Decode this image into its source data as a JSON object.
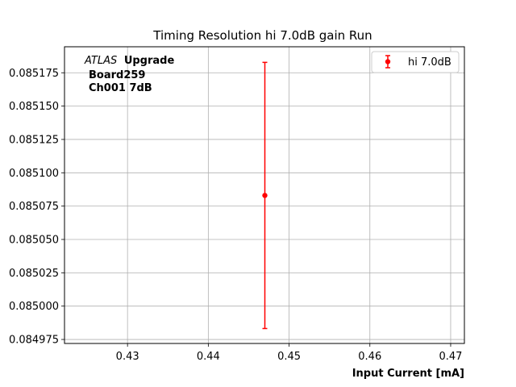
{
  "chart_data": {
    "type": "scatter",
    "title": "Timing Resolution hi 7.0dB gain Run",
    "xlabel": "Input Current [mA]",
    "ylabel": "",
    "xlim": [
      0.4222,
      0.4717
    ],
    "ylim": [
      0.084972,
      0.0851945
    ],
    "xticks": [
      "0.43",
      "0.44",
      "0.45",
      "0.46",
      "0.47"
    ],
    "xtick_values": [
      0.43,
      0.44,
      0.45,
      0.46,
      0.47
    ],
    "yticks": [
      "0.084975",
      "0.085000",
      "0.085025",
      "0.085050",
      "0.085075",
      "0.085100",
      "0.085125",
      "0.085150",
      "0.085175"
    ],
    "ytick_values": [
      0.084975,
      0.085,
      0.085025,
      0.08505,
      0.085075,
      0.0851,
      0.085125,
      0.08515,
      0.085175
    ],
    "grid": true,
    "legend_position": "top-right",
    "series": [
      {
        "name": "hi 7.0dB",
        "color": "#ff0000",
        "points": [
          {
            "x": 0.447,
            "y": 0.085083,
            "yerr": 9.98e-05
          }
        ]
      }
    ],
    "annotation": {
      "italic": "ATLAS",
      "bold": "Upgrade",
      "line2": "Board259",
      "line3": "Ch001 7dB"
    }
  }
}
